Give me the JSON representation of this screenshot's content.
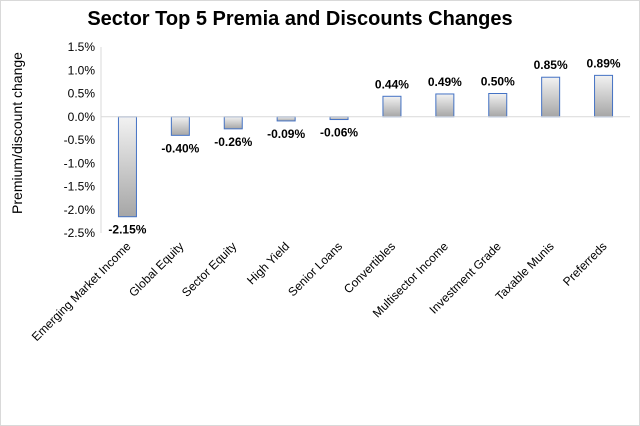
{
  "chart_data": {
    "type": "bar",
    "title": "Sector Top 5 Premia and Discounts Changes",
    "xlabel": "",
    "ylabel": "Premium/discount change",
    "categories": [
      "Emerging Market Income",
      "Global Equity",
      "Sector Equity",
      "High Yield",
      "Senior Loans",
      "Convertibles",
      "Multisector Income",
      "Investment Grade",
      "Taxable Munis",
      "Preferreds"
    ],
    "values": [
      -2.15,
      -0.4,
      -0.26,
      -0.09,
      -0.06,
      0.44,
      0.49,
      0.5,
      0.85,
      0.89
    ],
    "data_labels": [
      "-2.15%",
      "-0.40%",
      "-0.26%",
      "-0.09%",
      "-0.06%",
      "0.44%",
      "0.49%",
      "0.50%",
      "0.85%",
      "0.89%"
    ],
    "ylim": [
      -2.5,
      1.5
    ],
    "yticks": [
      1.5,
      1.0,
      0.5,
      0.0,
      -0.5,
      -1.0,
      -1.5,
      -2.0,
      -2.5
    ],
    "ytick_labels": [
      "1.5%",
      "1.0%",
      "0.5%",
      "0.0%",
      "-0.5%",
      "-1.0%",
      "-1.5%",
      "-2.0%",
      "-2.5%"
    ],
    "grid": false,
    "legend": "none",
    "bar_fill_top": "#f2f2f2",
    "bar_fill_bottom": "#a6a6a6",
    "bar_border": "#4472c4"
  }
}
